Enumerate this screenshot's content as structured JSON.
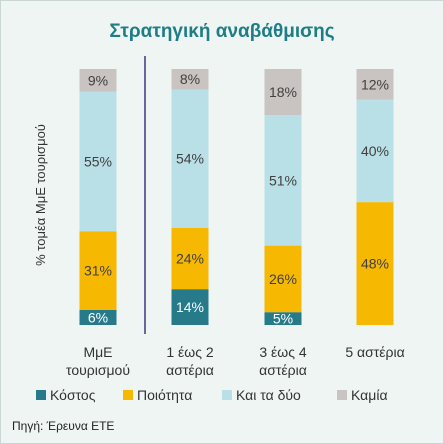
{
  "chart_data": {
    "type": "bar",
    "stacked": true,
    "normalized_percent": true,
    "title": "Στρατηγική αναβάθμισης",
    "ylabel": "% τομέα ΜμΕ τουρισμού",
    "categories": [
      [
        "ΜμΕ",
        "τουρισμού"
      ],
      [
        "1 έως 2",
        "αστέρια"
      ],
      [
        "3 έως 4",
        "αστέρια"
      ],
      [
        "5 αστέρια"
      ]
    ],
    "series": [
      {
        "name": "Κόστος",
        "color": "#267a8a",
        "values": [
          6,
          14,
          5,
          0
        ]
      },
      {
        "name": "Ποιότητα",
        "color": "#f6b800",
        "values": [
          31,
          24,
          26,
          48
        ]
      },
      {
        "name": "Και τα δύο",
        "color": "#b9dfe7",
        "values": [
          55,
          54,
          51,
          40
        ]
      },
      {
        "name": "Καμία",
        "color": "#c9c4c2",
        "values": [
          9,
          8,
          18,
          12
        ]
      }
    ],
    "data_labels": [
      [
        "6%",
        "31%",
        "55%",
        "9%"
      ],
      [
        "14%",
        "24%",
        "54%",
        "8%"
      ],
      [
        "5%",
        "26%",
        "51%",
        "18%"
      ],
      [
        "",
        "48%",
        "40%",
        "12%"
      ]
    ],
    "ylim": [
      0,
      100
    ],
    "legend_position": "bottom",
    "grid": false,
    "separator_line_color": "#3a3a7a"
  },
  "source_note": "Πηγή: Έρευνα ΕΤΕ",
  "colors": {
    "title": "#1e7d86",
    "text": "#333333",
    "label_on_dark": "#ffffff",
    "label_on_light": "#404040",
    "background": "#eef5f3"
  }
}
